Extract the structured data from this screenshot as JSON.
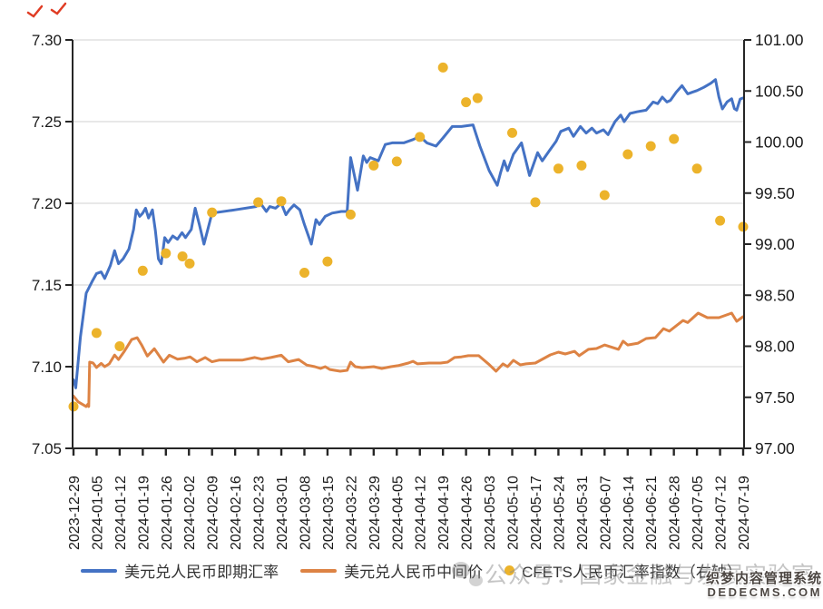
{
  "figure": {
    "title": "",
    "left_axis_labels": [
      "7.30",
      "7.25",
      "7.20",
      "7.15",
      "7.10",
      "7.05"
    ],
    "right_axis_labels": [
      "101.00",
      "100.50",
      "100.00",
      "99.50",
      "99.00",
      "98.50",
      "98.00",
      "97.50",
      "97.00"
    ]
  },
  "watermarks": {
    "wechat_text": "公众号：国家金融与发展实验室",
    "cms_line1": "织梦内容管理系统",
    "cms_line2": "DEDECMS.COM"
  },
  "chart_data": {
    "type": "line",
    "title": "",
    "legend_position": "bottom",
    "grid": "horizontal",
    "x_labels": [
      "2023-12-29",
      "2024-01-05",
      "2024-01-12",
      "2024-01-19",
      "2024-01-26",
      "2024-02-02",
      "2024-02-09",
      "2024-02-16",
      "2024-02-23",
      "2024-03-01",
      "2024-03-08",
      "2024-03-15",
      "2024-03-22",
      "2024-03-29",
      "2024-04-05",
      "2024-04-12",
      "2024-04-19",
      "2024-04-26",
      "2024-05-03",
      "2024-05-10",
      "2024-05-17",
      "2024-05-24",
      "2024-05-31",
      "2024-06-07",
      "2024-06-14",
      "2024-06-21",
      "2024-06-28",
      "2024-07-05",
      "2024-07-12",
      "2024-07-19"
    ],
    "left_axis": {
      "min": 7.05,
      "max": 7.3,
      "tick_step": 0.05
    },
    "right_axis": {
      "min": 97.0,
      "max": 101.0,
      "tick_step": 0.5
    },
    "series": [
      {
        "name": "美元兑人民币即期汇率",
        "type": "line",
        "axis": "left",
        "color": "#4472C4",
        "points": [
          [
            0,
            7.092
          ],
          [
            0.1,
            7.087
          ],
          [
            0.3,
            7.118
          ],
          [
            0.55,
            7.145
          ],
          [
            0.8,
            7.152
          ],
          [
            1,
            7.157
          ],
          [
            1.2,
            7.158
          ],
          [
            1.35,
            7.154
          ],
          [
            1.6,
            7.162
          ],
          [
            1.78,
            7.171
          ],
          [
            1.95,
            7.163
          ],
          [
            2.15,
            7.166
          ],
          [
            2.4,
            7.172
          ],
          [
            2.6,
            7.184
          ],
          [
            2.72,
            7.196
          ],
          [
            2.87,
            7.192
          ],
          [
            3,
            7.194
          ],
          [
            3.12,
            7.197
          ],
          [
            3.25,
            7.191
          ],
          [
            3.42,
            7.196
          ],
          [
            3.55,
            7.183
          ],
          [
            3.68,
            7.166
          ],
          [
            3.8,
            7.163
          ],
          [
            3.95,
            7.179
          ],
          [
            4.1,
            7.176
          ],
          [
            4.3,
            7.18
          ],
          [
            4.5,
            7.178
          ],
          [
            4.7,
            7.182
          ],
          [
            4.85,
            7.179
          ],
          [
            5.1,
            7.184
          ],
          [
            5.27,
            7.197
          ],
          [
            5.45,
            7.187
          ],
          [
            5.65,
            7.175
          ],
          [
            6,
            7.194
          ],
          [
            7,
            7.196
          ],
          [
            7.9,
            7.198
          ],
          [
            8.1,
            7.2
          ],
          [
            8.35,
            7.195
          ],
          [
            8.5,
            7.198
          ],
          [
            8.75,
            7.197
          ],
          [
            9,
            7.2
          ],
          [
            9.2,
            7.193
          ],
          [
            9.35,
            7.196
          ],
          [
            9.55,
            7.199
          ],
          [
            9.8,
            7.196
          ],
          [
            10,
            7.187
          ],
          [
            10.3,
            7.175
          ],
          [
            10.5,
            7.19
          ],
          [
            10.65,
            7.187
          ],
          [
            10.9,
            7.192
          ],
          [
            11.2,
            7.194
          ],
          [
            11.6,
            7.195
          ],
          [
            11.85,
            7.195
          ],
          [
            12,
            7.228
          ],
          [
            12.3,
            7.208
          ],
          [
            12.55,
            7.229
          ],
          [
            12.7,
            7.225
          ],
          [
            12.85,
            7.228
          ],
          [
            13.2,
            7.226
          ],
          [
            13.5,
            7.236
          ],
          [
            13.8,
            7.237
          ],
          [
            14.3,
            7.237
          ],
          [
            14.7,
            7.239
          ],
          [
            15,
            7.241
          ],
          [
            15.3,
            7.237
          ],
          [
            15.7,
            7.235
          ],
          [
            16,
            7.24
          ],
          [
            16.4,
            7.247
          ],
          [
            16.8,
            7.247
          ],
          [
            17.3,
            7.248
          ],
          [
            17.6,
            7.235
          ],
          [
            18,
            7.22
          ],
          [
            18.35,
            7.211
          ],
          [
            18.5,
            7.219
          ],
          [
            18.65,
            7.226
          ],
          [
            18.8,
            7.22
          ],
          [
            19.05,
            7.23
          ],
          [
            19.4,
            7.237
          ],
          [
            19.75,
            7.217
          ],
          [
            20.1,
            7.231
          ],
          [
            20.3,
            7.226
          ],
          [
            20.6,
            7.232
          ],
          [
            20.9,
            7.238
          ],
          [
            21.1,
            7.244
          ],
          [
            21.45,
            7.246
          ],
          [
            21.65,
            7.241
          ],
          [
            21.95,
            7.247
          ],
          [
            22.2,
            7.243
          ],
          [
            22.45,
            7.246
          ],
          [
            22.65,
            7.243
          ],
          [
            22.95,
            7.245
          ],
          [
            23.15,
            7.242
          ],
          [
            23.45,
            7.25
          ],
          [
            23.7,
            7.254
          ],
          [
            23.85,
            7.25
          ],
          [
            24.1,
            7.255
          ],
          [
            24.4,
            7.256
          ],
          [
            24.8,
            7.257
          ],
          [
            25.1,
            7.262
          ],
          [
            25.3,
            7.261
          ],
          [
            25.5,
            7.265
          ],
          [
            25.7,
            7.262
          ],
          [
            25.85,
            7.263
          ],
          [
            26.1,
            7.268
          ],
          [
            26.35,
            7.272
          ],
          [
            26.6,
            7.267
          ],
          [
            26.8,
            7.268
          ],
          [
            27,
            7.269
          ],
          [
            27.3,
            7.271
          ],
          [
            27.6,
            7.2735
          ],
          [
            27.8,
            7.2757
          ],
          [
            27.95,
            7.265
          ],
          [
            28.1,
            7.2578
          ],
          [
            28.3,
            7.262
          ],
          [
            28.5,
            7.264
          ],
          [
            28.62,
            7.258
          ],
          [
            28.72,
            7.257
          ],
          [
            28.87,
            7.2638
          ],
          [
            29,
            7.2645
          ]
        ]
      },
      {
        "name": "美元兑人民币中间价",
        "type": "line",
        "axis": "left",
        "color": "#DD8344",
        "points": [
          [
            0,
            7.082
          ],
          [
            0.2,
            7.0785
          ],
          [
            0.55,
            7.0756
          ],
          [
            0.62,
            7.077
          ],
          [
            0.66,
            7.0756
          ],
          [
            0.7,
            7.1028
          ],
          [
            0.85,
            7.1022
          ],
          [
            1,
            7.0995
          ],
          [
            1.2,
            7.102
          ],
          [
            1.35,
            7.1
          ],
          [
            1.55,
            7.1017
          ],
          [
            1.78,
            7.1071
          ],
          [
            1.95,
            7.1044
          ],
          [
            2.2,
            7.1094
          ],
          [
            2.52,
            7.1166
          ],
          [
            2.76,
            7.1177
          ],
          [
            2.95,
            7.1133
          ],
          [
            3.2,
            7.1065
          ],
          [
            3.5,
            7.111
          ],
          [
            3.9,
            7.1028
          ],
          [
            4.15,
            7.107
          ],
          [
            4.5,
            7.1046
          ],
          [
            4.8,
            7.1051
          ],
          [
            5.05,
            7.106
          ],
          [
            5.35,
            7.103
          ],
          [
            5.7,
            7.1056
          ],
          [
            6,
            7.103
          ],
          [
            6.3,
            7.104
          ],
          [
            7.3,
            7.104
          ],
          [
            7.85,
            7.1056
          ],
          [
            8.15,
            7.1046
          ],
          [
            8.55,
            7.1056
          ],
          [
            9,
            7.107
          ],
          [
            9.3,
            7.103
          ],
          [
            9.75,
            7.1044
          ],
          [
            10.1,
            7.101
          ],
          [
            10.45,
            7.1
          ],
          [
            10.7,
            7.0989
          ],
          [
            10.9,
            7.1
          ],
          [
            11.1,
            7.0983
          ],
          [
            11.55,
            7.0972
          ],
          [
            11.85,
            7.0978
          ],
          [
            12,
            7.1028
          ],
          [
            12.2,
            7.1
          ],
          [
            12.5,
            7.0994
          ],
          [
            13,
            7.1
          ],
          [
            13.35,
            7.0989
          ],
          [
            13.75,
            7.1
          ],
          [
            14.05,
            7.1006
          ],
          [
            14.5,
            7.1022
          ],
          [
            14.7,
            7.1033
          ],
          [
            14.9,
            7.1017
          ],
          [
            15.4,
            7.1022
          ],
          [
            15.9,
            7.1022
          ],
          [
            16.2,
            7.1028
          ],
          [
            16.5,
            7.1056
          ],
          [
            16.8,
            7.106
          ],
          [
            17.1,
            7.1067
          ],
          [
            17.55,
            7.1067
          ],
          [
            18,
            7.1013
          ],
          [
            18.3,
            7.0972
          ],
          [
            18.6,
            7.1017
          ],
          [
            18.8,
            7.1
          ],
          [
            19.05,
            7.1039
          ],
          [
            19.35,
            7.1011
          ],
          [
            19.6,
            7.1017
          ],
          [
            20,
            7.1022
          ],
          [
            20.65,
            7.1072
          ],
          [
            21,
            7.1089
          ],
          [
            21.3,
            7.1078
          ],
          [
            21.7,
            7.1094
          ],
          [
            21.9,
            7.1067
          ],
          [
            22.3,
            7.1106
          ],
          [
            22.65,
            7.1111
          ],
          [
            23,
            7.1133
          ],
          [
            23.6,
            7.1106
          ],
          [
            23.8,
            7.1156
          ],
          [
            24,
            7.1133
          ],
          [
            24.45,
            7.1144
          ],
          [
            24.8,
            7.1172
          ],
          [
            25.2,
            7.1178
          ],
          [
            25.55,
            7.1233
          ],
          [
            25.8,
            7.1217
          ],
          [
            26.4,
            7.1283
          ],
          [
            26.6,
            7.127
          ],
          [
            27.05,
            7.1328
          ],
          [
            27.45,
            7.13
          ],
          [
            27.95,
            7.13
          ],
          [
            28.5,
            7.1328
          ],
          [
            28.72,
            7.1278
          ],
          [
            29,
            7.1306
          ]
        ]
      },
      {
        "name": "CFETS人民币汇率指数（右轴）",
        "type": "scatter",
        "axis": "right",
        "color": "#ECB32B",
        "points": [
          [
            0,
            97.41
          ],
          [
            1,
            98.13
          ],
          [
            2,
            98.0
          ],
          [
            3,
            98.74
          ],
          [
            4,
            98.91
          ],
          [
            4.72,
            98.88
          ],
          [
            5.03,
            98.81
          ],
          [
            6,
            99.31
          ],
          [
            8,
            99.41
          ],
          [
            9,
            99.42
          ],
          [
            10,
            98.72
          ],
          [
            11,
            98.83
          ],
          [
            12,
            99.29
          ],
          [
            13,
            99.77
          ],
          [
            14,
            99.81
          ],
          [
            15,
            100.05
          ],
          [
            16,
            100.73
          ],
          [
            17,
            100.39
          ],
          [
            17.5,
            100.43
          ],
          [
            19,
            100.09
          ],
          [
            20,
            99.41
          ],
          [
            21,
            99.74
          ],
          [
            22,
            99.77
          ],
          [
            23,
            99.48
          ],
          [
            24,
            99.88
          ],
          [
            25,
            99.96
          ],
          [
            26,
            100.03
          ],
          [
            27,
            99.74
          ],
          [
            28,
            99.23
          ],
          [
            29,
            99.17
          ]
        ]
      }
    ]
  }
}
